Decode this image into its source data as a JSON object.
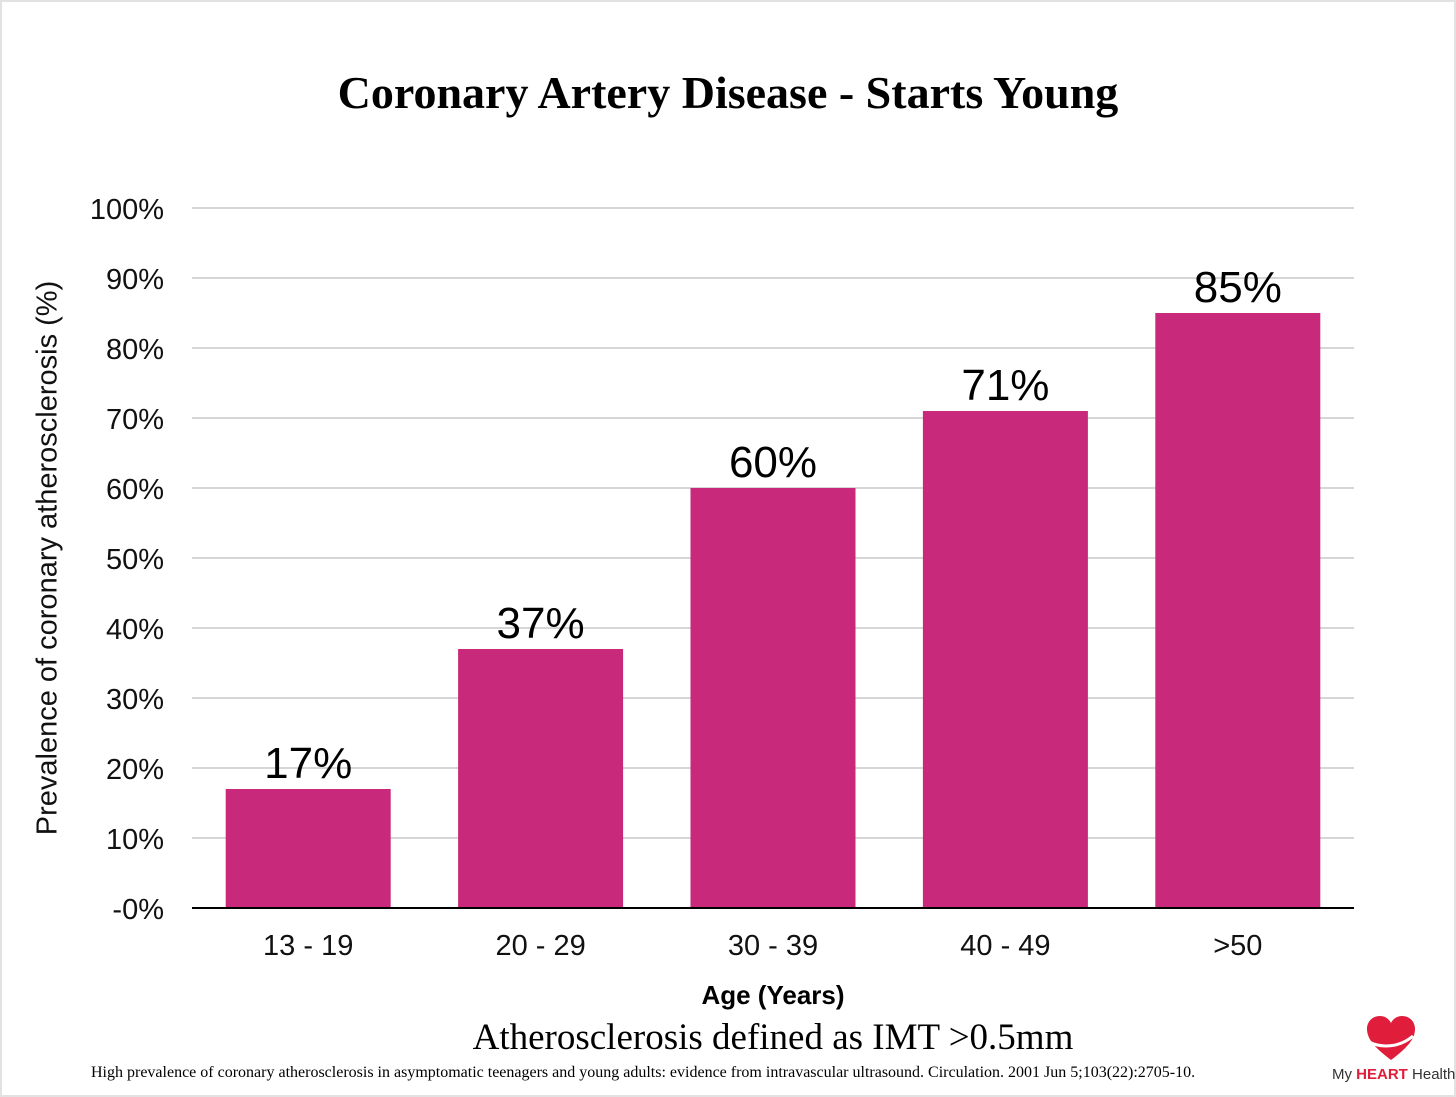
{
  "chart_data": {
    "type": "bar",
    "title": "Coronary Artery Disease - Starts Young",
    "xlabel": "Age (Years)",
    "ylabel": "Prevalence of coronary atherosclerosis (%)",
    "categories": [
      "13 - 19",
      "20 - 29",
      "30 - 39",
      "40 - 49",
      ">50"
    ],
    "values": [
      17,
      37,
      60,
      71,
      85
    ],
    "data_labels": [
      "17%",
      "37%",
      "60%",
      "71%",
      "85%"
    ],
    "ylim": [
      0,
      100
    ],
    "yticks": [
      0,
      10,
      20,
      30,
      40,
      50,
      60,
      70,
      80,
      90,
      100
    ],
    "ytick_labels": [
      "-0%",
      "10%",
      "20%",
      "30%",
      "40%",
      "50%",
      "60%",
      "70%",
      "80%",
      "90%",
      "100%"
    ],
    "grid": true,
    "bar_color": "#c8297a"
  },
  "note": "Atherosclerosis defined as IMT >0.5mm",
  "citation": "High prevalence of coronary atherosclerosis in asymptomatic teenagers and young adults: evidence from intravascular ultrasound. Circulation. 2001 Jun 5;103(22):2705-10.",
  "logo": {
    "prefix": "My",
    "brand": "HEART",
    "suffix": "Health",
    "heart_color": "#e01d3a",
    "icon": "heart-icon"
  }
}
